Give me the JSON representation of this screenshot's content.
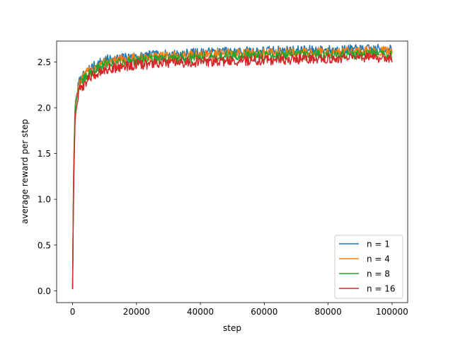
{
  "chart_data": {
    "type": "line",
    "title": "",
    "xlabel": "step",
    "ylabel": "average reward per step",
    "xlim": [
      -4995,
      104895
    ],
    "ylim": [
      -0.1289,
      2.7279
    ],
    "x_ticks": [
      0,
      20000,
      40000,
      60000,
      80000,
      100000
    ],
    "x_tick_labels": [
      "0",
      "20000",
      "40000",
      "60000",
      "80000",
      "100000"
    ],
    "y_ticks": [
      0.0,
      0.5,
      1.0,
      1.5,
      2.0,
      2.5
    ],
    "y_tick_labels": [
      "0.0",
      "0.5",
      "1.0",
      "1.5",
      "2.0",
      "2.5"
    ],
    "grid": false,
    "legend_position": "lower-right",
    "x_range": [
      0,
      100000
    ],
    "series": [
      {
        "name": "n = 1",
        "color": "#1f77b4",
        "trend": [
          [
            0,
            0.02
          ],
          [
            300,
            1.3
          ],
          [
            800,
            2.05
          ],
          [
            2000,
            2.28
          ],
          [
            5000,
            2.42
          ],
          [
            10000,
            2.52
          ],
          [
            20000,
            2.56
          ],
          [
            40000,
            2.6
          ],
          [
            60000,
            2.62
          ],
          [
            80000,
            2.63
          ],
          [
            100000,
            2.64
          ]
        ]
      },
      {
        "name": "n = 4",
        "color": "#ff7f0e",
        "trend": [
          [
            0,
            0.02
          ],
          [
            300,
            1.25
          ],
          [
            800,
            2.02
          ],
          [
            2000,
            2.27
          ],
          [
            5000,
            2.4
          ],
          [
            10000,
            2.5
          ],
          [
            20000,
            2.54
          ],
          [
            40000,
            2.58
          ],
          [
            60000,
            2.6
          ],
          [
            80000,
            2.61
          ],
          [
            100000,
            2.62
          ]
        ]
      },
      {
        "name": "n = 8",
        "color": "#2ca02c",
        "trend": [
          [
            0,
            0.02
          ],
          [
            300,
            1.2
          ],
          [
            800,
            2.0
          ],
          [
            2000,
            2.24
          ],
          [
            5000,
            2.37
          ],
          [
            10000,
            2.47
          ],
          [
            20000,
            2.52
          ],
          [
            40000,
            2.55
          ],
          [
            60000,
            2.57
          ],
          [
            80000,
            2.58
          ],
          [
            100000,
            2.59
          ]
        ]
      },
      {
        "name": "n = 16",
        "color": "#d62728",
        "trend": [
          [
            0,
            0.02
          ],
          [
            300,
            1.1
          ],
          [
            800,
            1.9
          ],
          [
            2000,
            2.18
          ],
          [
            5000,
            2.32
          ],
          [
            10000,
            2.42
          ],
          [
            20000,
            2.47
          ],
          [
            40000,
            2.5
          ],
          [
            60000,
            2.52
          ],
          [
            80000,
            2.54
          ],
          [
            100000,
            2.55
          ]
        ]
      }
    ]
  }
}
